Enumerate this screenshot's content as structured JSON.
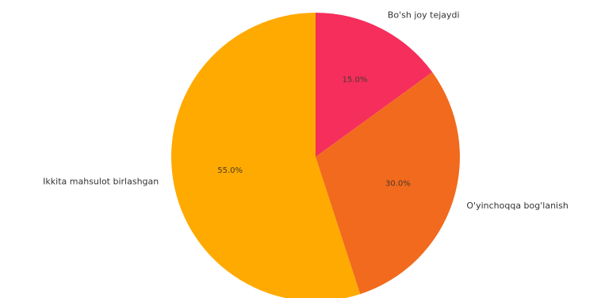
{
  "chart_data": {
    "type": "pie",
    "title": "",
    "slices": [
      {
        "label": "Bo'sh joy tejaydi",
        "value": 15.0,
        "pct_label": "15.0%",
        "color": "#F52E5C"
      },
      {
        "label": "O'yinchoqqa bog'lanish",
        "value": 30.0,
        "pct_label": "30.0%",
        "color": "#F26A1D"
      },
      {
        "label": "Ikkita mahsulot birlashgan",
        "value": 55.0,
        "pct_label": "55.0%",
        "color": "#FFAA00"
      }
    ],
    "start_angle": "top",
    "direction": "clockwise",
    "legend": "none"
  }
}
